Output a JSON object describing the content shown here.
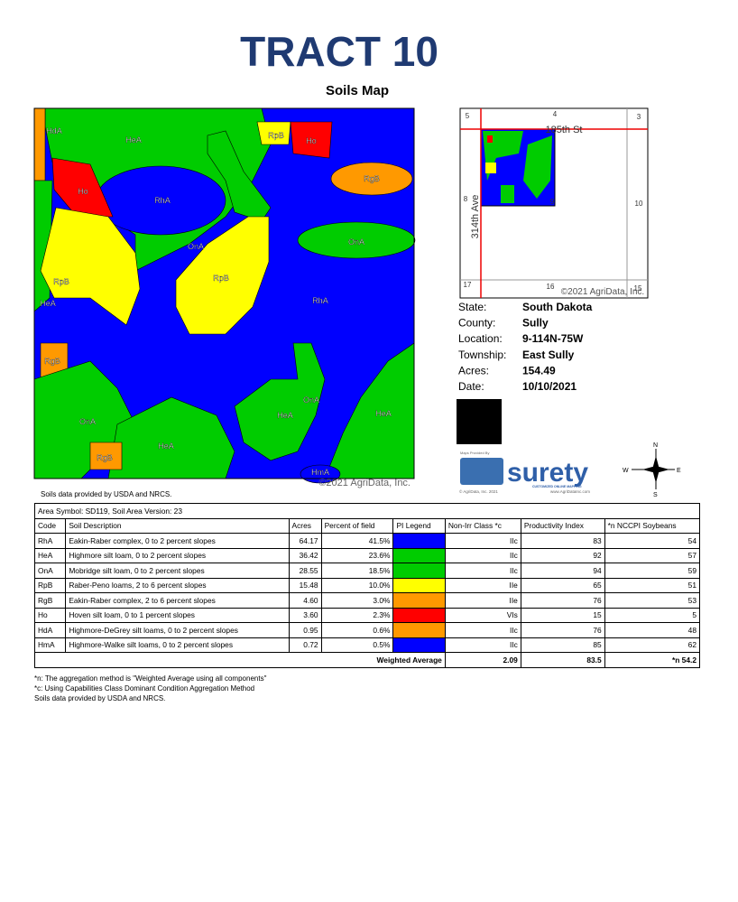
{
  "header": {
    "title": "TRACT 10",
    "subtitle": "Soils Map"
  },
  "map": {
    "labels": [
      "HdA",
      "HeA",
      "RpB",
      "Ho",
      "RgB",
      "Ho",
      "RhA",
      "OnA",
      "OnA",
      "RpB",
      "RpB",
      "HeA",
      "RhA",
      "RgB",
      "OnA",
      "HeA",
      "HeA",
      "OnA",
      "HeA",
      "RgB",
      "HmA"
    ],
    "copyright": "©2021 AgriData, Inc.",
    "source_note": "Soils data provided by USDA and NRCS."
  },
  "inset": {
    "labels": [
      "5",
      "4",
      "3",
      "185th St",
      "8",
      "9",
      "10",
      "314th Ave",
      "17",
      "16",
      "15"
    ],
    "copyright": "©2021 AgriData, Inc."
  },
  "info": [
    {
      "label": "State:",
      "value": "South Dakota"
    },
    {
      "label": "County:",
      "value": "Sully"
    },
    {
      "label": "Location:",
      "value": "9-114N-75W"
    },
    {
      "label": "Township:",
      "value": "East Sully"
    },
    {
      "label": "Acres:",
      "value": "154.49"
    },
    {
      "label": "Date:",
      "value": "10/10/2021"
    }
  ],
  "logo": {
    "provided": "Maps Provided By",
    "brand": "surety",
    "tagline": "CUSTOMIZED ONLINE MAPPING",
    "copyright": "© AgriData, Inc. 2021",
    "url": "www.AgriDataInc.com"
  },
  "compass": {
    "n": "N",
    "s": "S",
    "e": "E",
    "w": "W"
  },
  "table": {
    "caption": "Area Symbol: SD119, Soil Area Version: 23",
    "columns": [
      "Code",
      "Soil Description",
      "Acres",
      "Percent of field",
      "PI Legend",
      "Non-Irr Class *c",
      "Productivity Index",
      "*n NCCPI Soybeans"
    ],
    "rows": [
      [
        "RhA",
        "Eakin-Raber complex, 0 to 2 percent slopes",
        "64.17",
        "41.5%",
        "IIc",
        "83",
        "54"
      ],
      [
        "HeA",
        "Highmore silt loam, 0 to 2 percent slopes",
        "36.42",
        "23.6%",
        "IIc",
        "92",
        "57"
      ],
      [
        "OnA",
        "Mobridge silt loam, 0 to 2 percent slopes",
        "28.55",
        "18.5%",
        "IIc",
        "94",
        "59"
      ],
      [
        "RpB",
        "Raber-Peno loams, 2 to 6 percent slopes",
        "15.48",
        "10.0%",
        "IIe",
        "65",
        "51"
      ],
      [
        "RgB",
        "Eakin-Raber complex, 2 to 6 percent slopes",
        "4.60",
        "3.0%",
        "IIe",
        "76",
        "53"
      ],
      [
        "Ho",
        "Hoven silt loam, 0 to 1 percent slopes",
        "3.60",
        "2.3%",
        "VIs",
        "15",
        "5"
      ],
      [
        "HdA",
        "Highmore-DeGrey silt loams, 0 to 2 percent slopes",
        "0.95",
        "0.6%",
        "IIc",
        "76",
        "48"
      ],
      [
        "HmA",
        "Highmore-Walke silt loams, 0 to 2 percent slopes",
        "0.72",
        "0.5%",
        "IIc",
        "85",
        "62"
      ]
    ],
    "row_colors": [
      "#0000ff",
      "#00cc00",
      "#00cc00",
      "#ffff00",
      "#ff9900",
      "#ff0000",
      "#ff9900",
      "#0000ff"
    ],
    "footer": {
      "label": "Weighted Average",
      "values": [
        "2.09",
        "83.5",
        "*n 54.2"
      ]
    }
  },
  "footnotes": [
    "*n: The aggregation method is \"Weighted Average using all components\"",
    "*c: Using Capabilities Class Dominant Condition Aggregation Method",
    "Soils data provided by USDA and NRCS."
  ]
}
